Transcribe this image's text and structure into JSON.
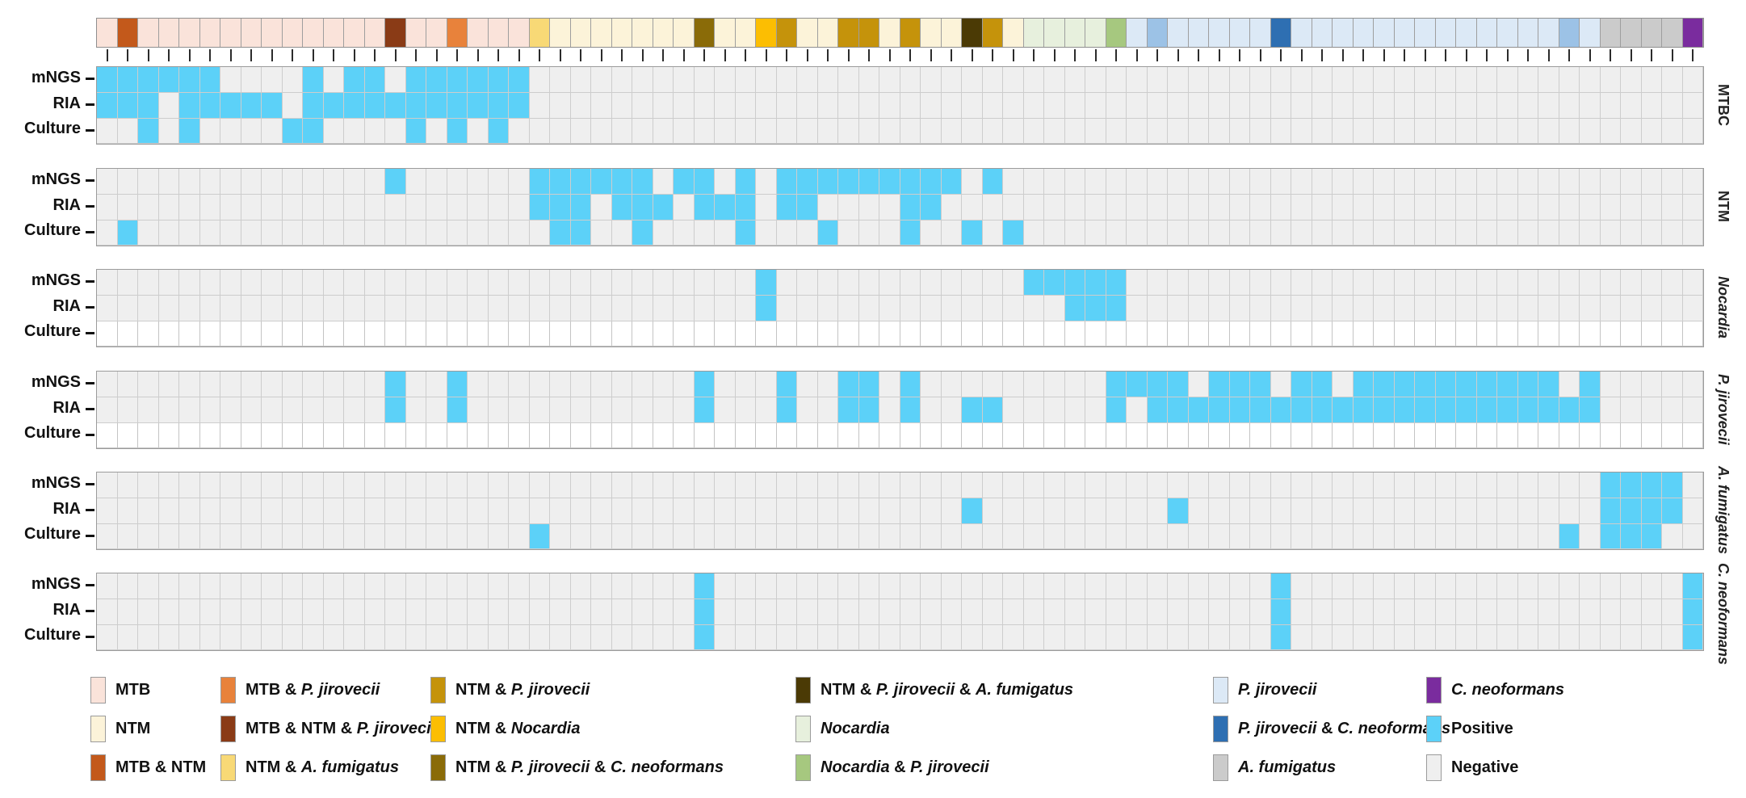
{
  "chart_data": {
    "type": "heatmap",
    "title": "",
    "n_columns": 78,
    "assay_rows": [
      "mNGS",
      "RIA",
      "Culture"
    ],
    "cell_states": {
      "positive": "#5CD1F8",
      "negative": "#EFEFEF",
      "not_applicable": "#FFFFFF"
    },
    "palette": {
      "mtb": {
        "color": "#FAE3DA",
        "parts": [
          {
            "t": "MTB",
            "i": 0
          }
        ]
      },
      "ntm": {
        "color": "#FCF3D9",
        "parts": [
          {
            "t": "NTM",
            "i": 0
          }
        ]
      },
      "mtb_ntm": {
        "color": "#C3591B",
        "parts": [
          {
            "t": "MTB & NTM",
            "i": 0
          }
        ]
      },
      "mtb_pj": {
        "color": "#E8823B",
        "parts": [
          {
            "t": "MTB & ",
            "i": 0
          },
          {
            "t": "P. jirovecii",
            "i": 1
          }
        ]
      },
      "mtb_ntm_pj": {
        "color": "#8A3B16",
        "parts": [
          {
            "t": "MTB & NTM & ",
            "i": 0
          },
          {
            "t": "P. jirovecii",
            "i": 1
          }
        ]
      },
      "ntm_af": {
        "color": "#F8D976",
        "parts": [
          {
            "t": "NTM & ",
            "i": 0
          },
          {
            "t": "A. fumigatus",
            "i": 1
          }
        ]
      },
      "ntm_pj": {
        "color": "#C5930B",
        "parts": [
          {
            "t": "NTM & ",
            "i": 0
          },
          {
            "t": "P. jirovecii",
            "i": 1
          }
        ]
      },
      "ntm_noc": {
        "color": "#FCBE02",
        "parts": [
          {
            "t": "NTM & ",
            "i": 0
          },
          {
            "t": "Nocardia",
            "i": 1
          }
        ]
      },
      "ntm_pj_cn": {
        "color": "#8A6B08",
        "parts": [
          {
            "t": "NTM & ",
            "i": 0
          },
          {
            "t": "P. jirovecii",
            "i": 1
          },
          {
            "t": " & ",
            "i": 0
          },
          {
            "t": "C. neoformans",
            "i": 1
          }
        ]
      },
      "ntm_pj_af": {
        "color": "#4B3A05",
        "parts": [
          {
            "t": "NTM & ",
            "i": 0
          },
          {
            "t": "P. jirovecii",
            "i": 1
          },
          {
            "t": " & ",
            "i": 0
          },
          {
            "t": "A. fumigatus",
            "i": 1
          }
        ]
      },
      "noc": {
        "color": "#E7F0DD",
        "parts": [
          {
            "t": "Nocardia",
            "i": 1
          }
        ]
      },
      "noc_pj": {
        "color": "#A6C87F",
        "parts": [
          {
            "t": "Nocardia",
            "i": 1
          },
          {
            "t": " & ",
            "i": 0
          },
          {
            "t": "P. jirovecii",
            "i": 1
          }
        ]
      },
      "pj": {
        "color": "#DCE9F6",
        "parts": [
          {
            "t": "P. jirovecii",
            "i": 1
          }
        ]
      },
      "pj_cn": {
        "color": "#2E6FB2",
        "parts": [
          {
            "t": "P. jirovecii",
            "i": 1
          },
          {
            "t": " & ",
            "i": 0
          },
          {
            "t": "C. neoformans",
            "i": 1
          }
        ]
      },
      "pj_cn2": {
        "color": "#9CC2E6",
        "parts": [
          {
            "t": "P. jirovecii",
            "i": 1
          },
          {
            "t": " & ",
            "i": 0
          },
          {
            "t": "C. neoformans",
            "i": 1
          }
        ]
      },
      "af": {
        "color": "#CBCBCB",
        "parts": [
          {
            "t": "A. fumigatus",
            "i": 1
          }
        ]
      },
      "cn": {
        "color": "#7A2C9E",
        "parts": [
          {
            "t": "C. neoformans",
            "i": 1
          }
        ]
      },
      "positive": {
        "color": "#5CD1F8",
        "parts": [
          {
            "t": "Positive",
            "i": 0
          }
        ]
      },
      "negative": {
        "color": "#EFEFEF",
        "parts": [
          {
            "t": "Negative",
            "i": 0
          }
        ]
      }
    },
    "column_categories": [
      "mtb",
      "mtb_ntm",
      "mtb",
      "mtb",
      "mtb",
      "mtb",
      "mtb",
      "mtb",
      "mtb",
      "mtb",
      "mtb",
      "mtb",
      "mtb",
      "mtb",
      "mtb_ntm_pj",
      "mtb",
      "mtb",
      "mtb_pj",
      "mtb",
      "mtb",
      "mtb",
      "ntm_af",
      "ntm",
      "ntm",
      "ntm",
      "ntm",
      "ntm",
      "ntm",
      "ntm",
      "ntm_pj_cn",
      "ntm",
      "ntm",
      "ntm_noc",
      "ntm_pj",
      "ntm",
      "ntm",
      "ntm_pj",
      "ntm_pj",
      "ntm",
      "ntm_pj",
      "ntm",
      "ntm",
      "ntm_pj_af",
      "ntm_pj",
      "ntm",
      "noc",
      "noc",
      "noc",
      "noc",
      "noc_pj",
      "pj",
      "pj_cn2",
      "pj",
      "pj",
      "pj",
      "pj",
      "pj",
      "pj_cn",
      "pj",
      "pj",
      "pj",
      "pj",
      "pj",
      "pj",
      "pj",
      "pj",
      "pj",
      "pj",
      "pj",
      "pj",
      "pj",
      "pj_cn2",
      "pj",
      "af",
      "af",
      "af",
      "af",
      "cn"
    ],
    "panels": [
      {
        "id": "mtbc",
        "label_parts": [
          {
            "t": "MTBC",
            "i": 0
          }
        ],
        "culture_na": false,
        "positives": {
          "mNGS": [
            1,
            2,
            3,
            4,
            5,
            6,
            11,
            13,
            14,
            16,
            17,
            18,
            19,
            20,
            21
          ],
          "RIA": [
            1,
            2,
            3,
            5,
            6,
            7,
            8,
            9,
            11,
            12,
            13,
            14,
            15,
            16,
            17,
            18,
            19,
            20,
            21
          ],
          "Culture": [
            3,
            5,
            10,
            11,
            16,
            18,
            20
          ]
        }
      },
      {
        "id": "ntm",
        "label_parts": [
          {
            "t": "NTM",
            "i": 0
          }
        ],
        "culture_na": false,
        "positives": {
          "mNGS": [
            15,
            22,
            23,
            24,
            25,
            26,
            27,
            29,
            30,
            32,
            34,
            35,
            36,
            37,
            38,
            39,
            40,
            41,
            42,
            44
          ],
          "RIA": [
            22,
            23,
            24,
            26,
            27,
            28,
            30,
            31,
            32,
            34,
            35,
            40,
            41
          ],
          "Culture": [
            2,
            23,
            24,
            27,
            32,
            36,
            40,
            43,
            45
          ]
        }
      },
      {
        "id": "nocardia",
        "label_parts": [
          {
            "t": "Nocardia",
            "i": 1
          }
        ],
        "culture_na": true,
        "positives": {
          "mNGS": [
            33,
            46,
            47,
            48,
            49,
            50
          ],
          "RIA": [
            33,
            48,
            49,
            50
          ],
          "Culture": []
        }
      },
      {
        "id": "pjirovecii",
        "label_parts": [
          {
            "t": "P. jirovecii",
            "i": 1
          }
        ],
        "culture_na": true,
        "positives": {
          "mNGS": [
            15,
            18,
            30,
            34,
            37,
            38,
            40,
            50,
            51,
            52,
            53,
            55,
            56,
            57,
            59,
            60,
            62,
            63,
            64,
            65,
            66,
            67,
            68,
            69,
            70,
            71,
            73
          ],
          "RIA": [
            15,
            18,
            30,
            34,
            37,
            38,
            40,
            43,
            44,
            50,
            52,
            53,
            54,
            55,
            56,
            57,
            58,
            59,
            60,
            61,
            62,
            63,
            64,
            65,
            66,
            67,
            68,
            69,
            70,
            71,
            72,
            73
          ],
          "Culture": []
        }
      },
      {
        "id": "afumigatus",
        "label_parts": [
          {
            "t": "A. fumigatus",
            "i": 1
          }
        ],
        "culture_na": false,
        "positives": {
          "mNGS": [
            74,
            75,
            76,
            77
          ],
          "RIA": [
            43,
            53,
            74,
            75,
            76,
            77
          ],
          "Culture": [
            22,
            72,
            74,
            75,
            76
          ]
        }
      },
      {
        "id": "cneoformans",
        "label_parts": [
          {
            "t": "C. neoformans",
            "i": 1
          }
        ],
        "culture_na": false,
        "positives": {
          "mNGS": [
            30,
            58,
            78
          ],
          "RIA": [
            30,
            58,
            78
          ],
          "Culture": [
            30,
            58,
            78
          ]
        }
      }
    ],
    "legend": {
      "position": "bottom",
      "columns": [
        [
          "mtb",
          "ntm",
          "mtb_ntm"
        ],
        [
          "mtb_pj",
          "mtb_ntm_pj",
          "ntm_af"
        ],
        [
          "ntm_pj",
          "ntm_noc",
          "ntm_pj_cn"
        ],
        [
          "ntm_pj_af",
          "noc",
          "noc_pj"
        ],
        [
          "pj",
          "pj_cn",
          "af"
        ],
        [
          "cn",
          "positive",
          "negative"
        ]
      ]
    }
  }
}
